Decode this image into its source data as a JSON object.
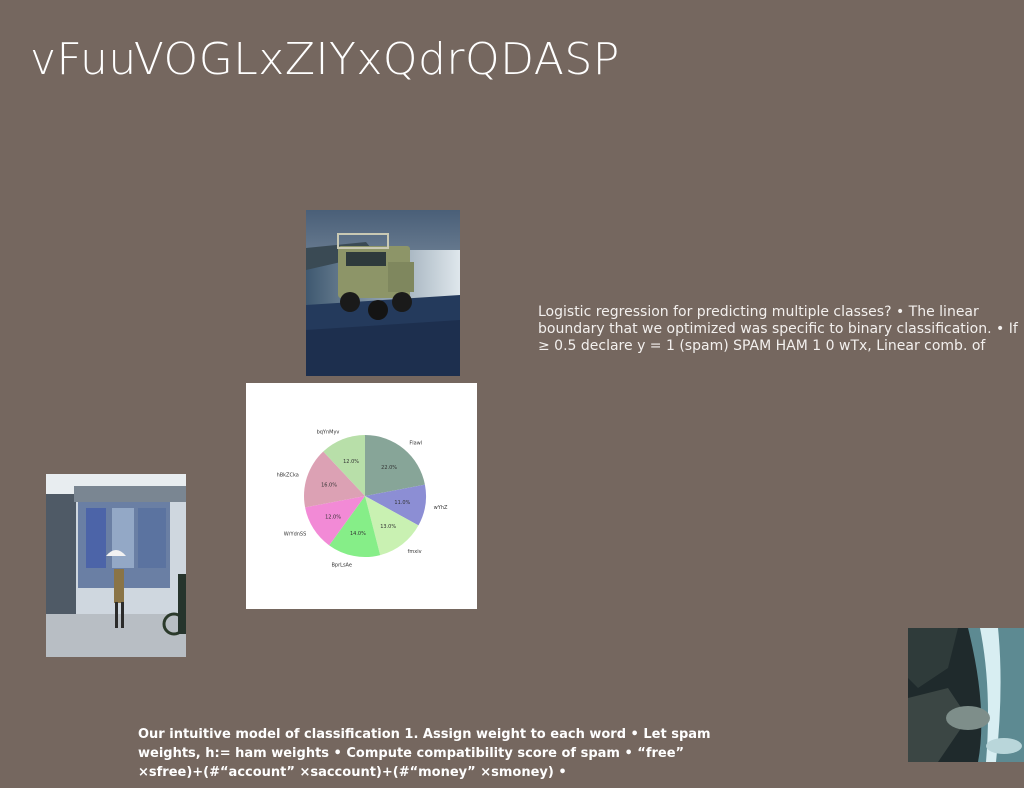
{
  "slide": {
    "title": "vFuuVOGLxZIYxQdrQDASP",
    "body_text": "Logistic regression for predicting multiple classes? • The linear boundary that we optimized was specific to binary classification. • If ≥ 0.5 declare y = 1 (spam) SPAM HAM 1 0 wTx, Linear comb. of",
    "bottom_text": "Our intuitive model of classification 1. Assign weight to each word • Let spam weights, h:= ham weights • Compute compatibility score of spam • “free” ×sfree)+(#“account” ×saccount)+(#“money” ×smoney) •"
  },
  "chart_data": {
    "type": "pie",
    "title": "",
    "categories": [
      "Flawl",
      "wYhZ",
      "fmxiv",
      "BprLsAe",
      "WrYdnSS",
      "hBkZCka",
      "bqYnMyv"
    ],
    "values": [
      22.0,
      11.0,
      13.0,
      14.0,
      12.0,
      16.0,
      12.0
    ],
    "labels": [
      "22.0%",
      "11.0%",
      "13.0%",
      "14.0%",
      "12.0%",
      "16.0%",
      "12.0%"
    ],
    "colors": [
      "#87a598",
      "#8c8ed4",
      "#c9f1b2",
      "#86ee88",
      "#f28ad6",
      "#dca1b4",
      "#b8dfa9"
    ],
    "start_angle": "top, clockwise"
  }
}
